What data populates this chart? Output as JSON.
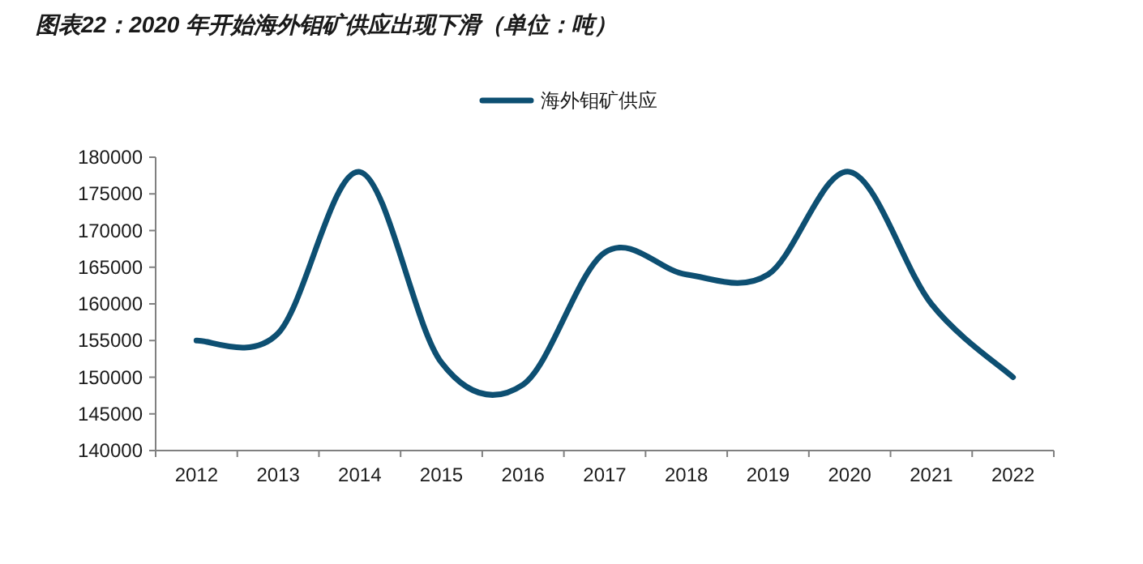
{
  "chart_data": {
    "type": "line",
    "title": "图表22：2020 年开始海外钼矿供应出现下滑（单位：吨）",
    "categories": [
      "2012",
      "2013",
      "2014",
      "2015",
      "2016",
      "2017",
      "2018",
      "2019",
      "2020",
      "2021",
      "2022"
    ],
    "series": [
      {
        "name": "海外钼矿供应",
        "color": "#0d4f72",
        "values": [
          155000,
          156000,
          178000,
          152000,
          149000,
          167000,
          164000,
          164000,
          178000,
          160000,
          150000
        ]
      }
    ],
    "ylim": [
      140000,
      180000
    ],
    "yticks": [
      140000,
      145000,
      150000,
      155000,
      160000,
      165000,
      170000,
      175000,
      180000
    ],
    "grid": false,
    "legend": "top",
    "marker": "none",
    "line_style": "solid"
  }
}
